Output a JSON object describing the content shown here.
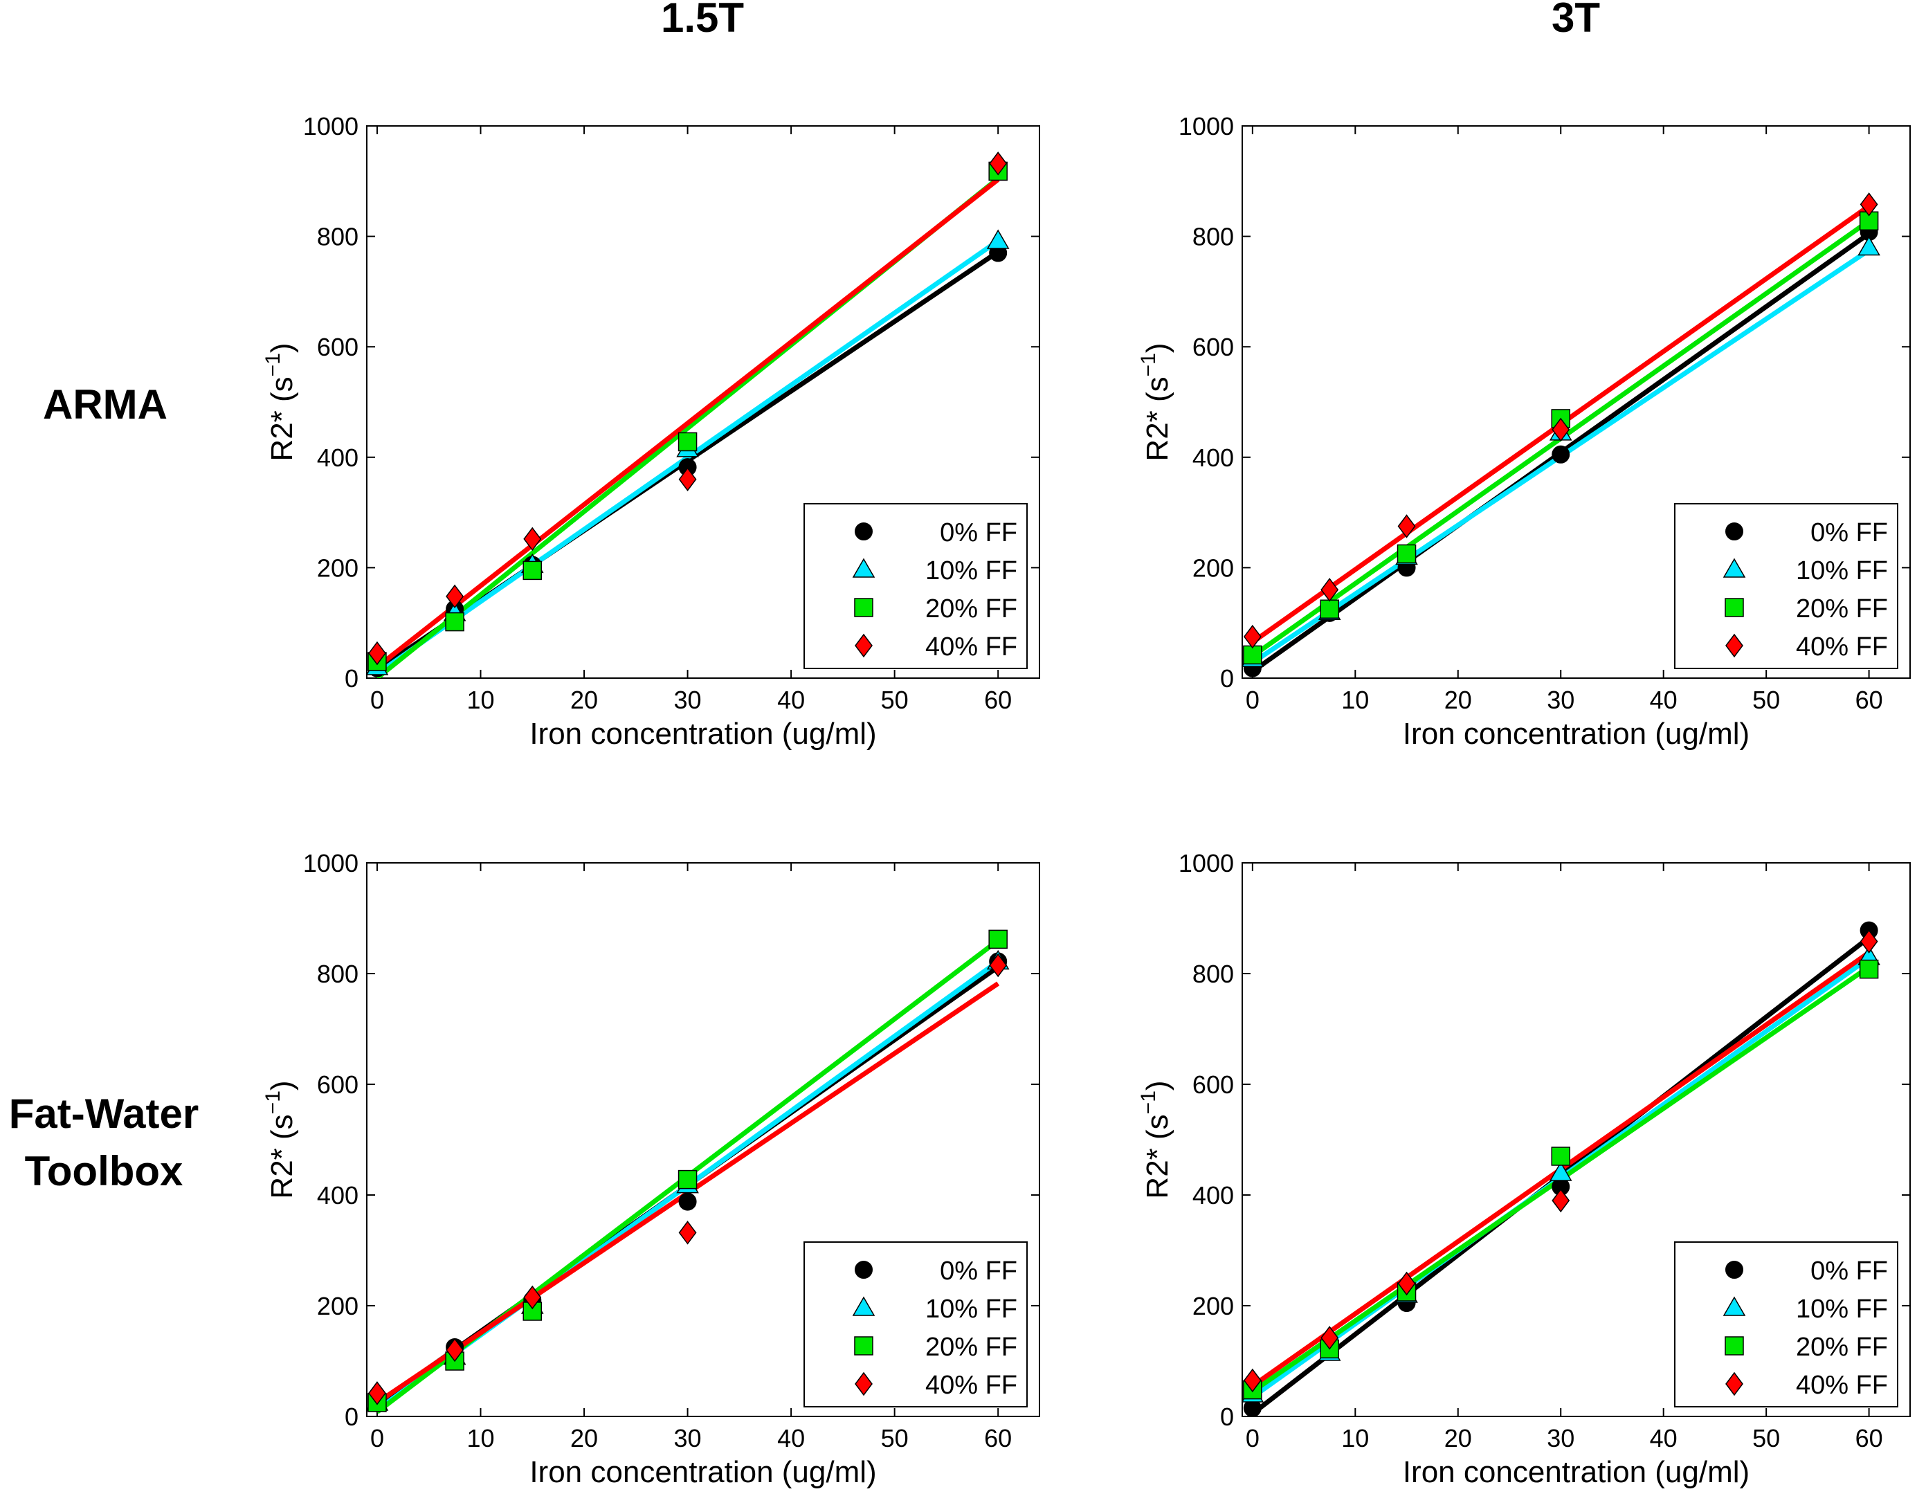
{
  "column_titles": [
    "1.5T",
    "3T"
  ],
  "row_titles": [
    [
      "ARMA"
    ],
    [
      "Fat-Water",
      "Toolbox"
    ]
  ],
  "colors": {
    "0% FF": "#000000",
    "10% FF": "#00e5ff",
    "20% FF": "#00e600",
    "40% FF": "#ff0000"
  },
  "markers": {
    "0% FF": "circle",
    "10% FF": "triangle",
    "20% FF": "square",
    "40% FF": "diamond"
  },
  "chart_data": [
    {
      "type": "scatter",
      "panel": "ARMA 1.5T",
      "xlabel": "Iron concentration (ug/ml)",
      "ylabel_main": "R2* (s",
      "ylabel_sup": "−1",
      "ylabel_tail": ")",
      "xlim": [
        -1,
        64
      ],
      "ylim": [
        0,
        1000
      ],
      "xticks": [
        0,
        10,
        20,
        30,
        40,
        50,
        60
      ],
      "yticks": [
        0,
        200,
        400,
        600,
        800,
        1000
      ],
      "legend_position": "lower-right",
      "series": [
        {
          "name": "0% FF",
          "x": [
            0,
            7.5,
            15,
            30,
            60
          ],
          "y": [
            18,
            125,
            205,
            382,
            770
          ],
          "fit": [
            [
              0,
              15
            ],
            [
              60,
              772
            ]
          ]
        },
        {
          "name": "10% FF",
          "x": [
            0,
            7.5,
            15,
            30,
            60
          ],
          "y": [
            20,
            118,
            205,
            415,
            792
          ],
          "fit": [
            [
              0,
              8
            ],
            [
              60,
              792
            ]
          ]
        },
        {
          "name": "20% FF",
          "x": [
            0,
            7.5,
            15,
            30,
            60
          ],
          "y": [
            30,
            102,
            195,
            428,
            918
          ],
          "fit": [
            [
              0,
              0
            ],
            [
              60,
              905
            ]
          ]
        },
        {
          "name": "40% FF",
          "x": [
            0,
            7.5,
            15,
            30,
            60
          ],
          "y": [
            45,
            148,
            252,
            360,
            932
          ],
          "fit": [
            [
              0,
              20
            ],
            [
              60,
              903
            ]
          ]
        }
      ]
    },
    {
      "type": "scatter",
      "panel": "ARMA 3T",
      "xlabel": "Iron concentration (ug/ml)",
      "ylabel_main": "R2* (s",
      "ylabel_sup": "−1",
      "ylabel_tail": ")",
      "xlim": [
        -1,
        64
      ],
      "ylim": [
        0,
        1000
      ],
      "xticks": [
        0,
        10,
        20,
        30,
        40,
        50,
        60
      ],
      "yticks": [
        0,
        200,
        400,
        600,
        800,
        1000
      ],
      "legend_position": "lower-right",
      "series": [
        {
          "name": "0% FF",
          "x": [
            0,
            7.5,
            15,
            30,
            60
          ],
          "y": [
            18,
            118,
            200,
            405,
            808
          ],
          "fit": [
            [
              0,
              12
            ],
            [
              60,
              805
            ]
          ]
        },
        {
          "name": "10% FF",
          "x": [
            0,
            7.5,
            15,
            30,
            60
          ],
          "y": [
            35,
            120,
            220,
            445,
            780
          ],
          "fit": [
            [
              0,
              28
            ],
            [
              60,
              775
            ]
          ]
        },
        {
          "name": "20% FF",
          "x": [
            0,
            7.5,
            15,
            30,
            60
          ],
          "y": [
            42,
            125,
            225,
            470,
            828
          ],
          "fit": [
            [
              0,
              40
            ],
            [
              60,
              828
            ]
          ]
        },
        {
          "name": "40% FF",
          "x": [
            0,
            7.5,
            15,
            30,
            60
          ],
          "y": [
            75,
            160,
            275,
            450,
            858
          ],
          "fit": [
            [
              0,
              65
            ],
            [
              60,
              855
            ]
          ]
        }
      ]
    },
    {
      "type": "scatter",
      "panel": "Fat-Water Toolbox 1.5T",
      "xlabel": "Iron concentration (ug/ml)",
      "ylabel_main": "R2* (s",
      "ylabel_sup": "−1",
      "ylabel_tail": ")",
      "xlim": [
        -1,
        64
      ],
      "ylim": [
        0,
        1000
      ],
      "xticks": [
        0,
        10,
        20,
        30,
        40,
        50,
        60
      ],
      "yticks": [
        0,
        200,
        400,
        600,
        800,
        1000
      ],
      "legend_position": "lower-right",
      "series": [
        {
          "name": "0% FF",
          "x": [
            0,
            7.5,
            15,
            30,
            60
          ],
          "y": [
            28,
            125,
            210,
            388,
            822
          ],
          "fit": [
            [
              0,
              22
            ],
            [
              60,
              812
            ]
          ]
        },
        {
          "name": "10% FF",
          "x": [
            0,
            7.5,
            15,
            30,
            60
          ],
          "y": [
            25,
            108,
            200,
            418,
            822
          ],
          "fit": [
            [
              0,
              12
            ],
            [
              60,
              822
            ]
          ]
        },
        {
          "name": "20% FF",
          "x": [
            0,
            7.5,
            15,
            30,
            60
          ],
          "y": [
            25,
            100,
            190,
            428,
            862
          ],
          "fit": [
            [
              0,
              8
            ],
            [
              60,
              860
            ]
          ]
        },
        {
          "name": "40% FF",
          "x": [
            0,
            7.5,
            15,
            30,
            60
          ],
          "y": [
            42,
            120,
            215,
            332,
            815
          ],
          "fit": [
            [
              0,
              25
            ],
            [
              60,
              782
            ]
          ]
        }
      ]
    },
    {
      "type": "scatter",
      "panel": "Fat-Water Toolbox 3T",
      "xlabel": "Iron concentration (ug/ml)",
      "ylabel_main": "R2* (s",
      "ylabel_sup": "−1",
      "ylabel_tail": ")",
      "xlim": [
        -1,
        64
      ],
      "ylim": [
        0,
        1000
      ],
      "xticks": [
        0,
        10,
        20,
        30,
        40,
        50,
        60
      ],
      "yticks": [
        0,
        200,
        400,
        600,
        800,
        1000
      ],
      "legend_position": "lower-right",
      "series": [
        {
          "name": "0% FF",
          "x": [
            0,
            7.5,
            15,
            30,
            60
          ],
          "y": [
            15,
            118,
            205,
            415,
            878
          ],
          "fit": [
            [
              0,
              5
            ],
            [
              60,
              865
            ]
          ]
        },
        {
          "name": "10% FF",
          "x": [
            0,
            7.5,
            15,
            30,
            60
          ],
          "y": [
            40,
            115,
            220,
            440,
            830
          ],
          "fit": [
            [
              0,
              35
            ],
            [
              60,
              828
            ]
          ]
        },
        {
          "name": "20% FF",
          "x": [
            0,
            7.5,
            15,
            30,
            60
          ],
          "y": [
            48,
            122,
            225,
            470,
            808
          ],
          "fit": [
            [
              0,
              45
            ],
            [
              60,
              812
            ]
          ]
        },
        {
          "name": "40% FF",
          "x": [
            0,
            7.5,
            15,
            30,
            60
          ],
          "y": [
            65,
            142,
            240,
            390,
            858
          ],
          "fit": [
            [
              0,
              55
            ],
            [
              60,
              838
            ]
          ]
        }
      ]
    }
  ]
}
